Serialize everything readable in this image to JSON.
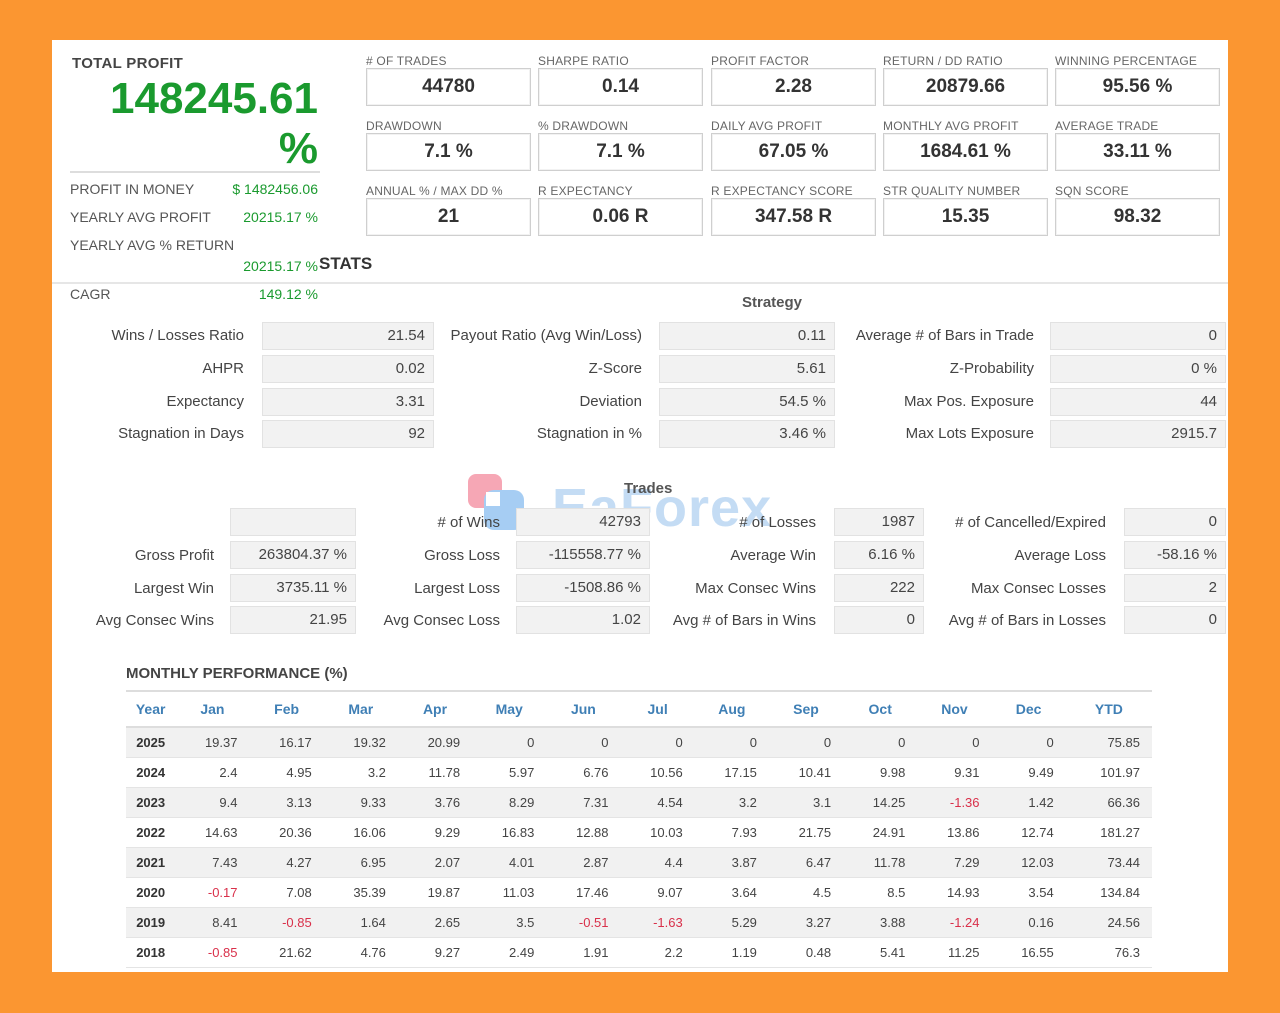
{
  "total_profit": {
    "label": "TOTAL PROFIT",
    "value": "148245.61",
    "pct": "%"
  },
  "side_stats": [
    {
      "label": "PROFIT IN MONEY",
      "value": "$ 1482456.06"
    },
    {
      "label": "YEARLY AVG PROFIT",
      "value": "20215.17 %"
    },
    {
      "label": "YEARLY AVG % RETURN",
      "value": "20215.17 %"
    },
    {
      "label": "CAGR",
      "value": "149.12 %"
    }
  ],
  "stats_title": "STATS",
  "metrics": [
    {
      "label": "# OF TRADES",
      "value": "44780"
    },
    {
      "label": "SHARPE RATIO",
      "value": "0.14"
    },
    {
      "label": "PROFIT FACTOR",
      "value": "2.28"
    },
    {
      "label": "RETURN / DD RATIO",
      "value": "20879.66"
    },
    {
      "label": "WINNING PERCENTAGE",
      "value": "95.56 %"
    },
    {
      "label": "DRAWDOWN",
      "value": "7.1 %"
    },
    {
      "label": "% DRAWDOWN",
      "value": "7.1 %"
    },
    {
      "label": "DAILY AVG PROFIT",
      "value": "67.05 %"
    },
    {
      "label": "MONTHLY AVG PROFIT",
      "value": "1684.61 %"
    },
    {
      "label": "AVERAGE TRADE",
      "value": "33.11 %"
    },
    {
      "label": "ANNUAL % / MAX DD %",
      "value": "21"
    },
    {
      "label": "R EXPECTANCY",
      "value": "0.06 R"
    },
    {
      "label": "R EXPECTANCY SCORE",
      "value": "347.58 R"
    },
    {
      "label": "STR QUALITY NUMBER",
      "value": "15.35"
    },
    {
      "label": "SQN SCORE",
      "value": "98.32"
    }
  ],
  "strategy": {
    "title": "Strategy",
    "rows": [
      {
        "l1": "Wins / Losses Ratio",
        "v1": "21.54",
        "l2": "Payout Ratio (Avg Win/Loss)",
        "v2": "0.11",
        "l3": "Average # of Bars in Trade",
        "v3": "0"
      },
      {
        "l1": "AHPR",
        "v1": "0.02",
        "l2": "Z-Score",
        "v2": "5.61",
        "l3": "Z-Probability",
        "v3": "0 %"
      },
      {
        "l1": "Expectancy",
        "v1": "3.31",
        "l2": "Deviation",
        "v2": "54.5 %",
        "l3": "Max Pos. Exposure",
        "v3": "44"
      },
      {
        "l1": "Stagnation in Days",
        "v1": "92",
        "l2": "Stagnation in %",
        "v2": "3.46 %",
        "l3": "Max Lots Exposure",
        "v3": "2915.7"
      }
    ]
  },
  "trades": {
    "title": "Trades",
    "rows": [
      {
        "l1": "",
        "v1": "",
        "l2": "# of Wins",
        "v2": "42793",
        "l3": "# of Losses",
        "v3": "1987",
        "l4": "# of Cancelled/Expired",
        "v4": "0"
      },
      {
        "l1": "Gross Profit",
        "v1": "263804.37 %",
        "l2": "Gross Loss",
        "v2": "-115558.77 %",
        "l3": "Average Win",
        "v3": "6.16 %",
        "l4": "Average Loss",
        "v4": "-58.16 %"
      },
      {
        "l1": "Largest Win",
        "v1": "3735.11 %",
        "l2": "Largest Loss",
        "v2": "-1508.86 %",
        "l3": "Max Consec Wins",
        "v3": "222",
        "l4": "Max Consec Losses",
        "v4": "2"
      },
      {
        "l1": "Avg Consec Wins",
        "v1": "21.95",
        "l2": "Avg Consec Loss",
        "v2": "1.02",
        "l3": "Avg # of Bars in Wins",
        "v3": "0",
        "l4": "Avg # of Bars in Losses",
        "v4": "0"
      }
    ]
  },
  "watermark": {
    "text": "EaForex"
  },
  "monthly": {
    "title": "MONTHLY PERFORMANCE (%)",
    "headers": [
      "Year",
      "Jan",
      "Feb",
      "Mar",
      "Apr",
      "May",
      "Jun",
      "Jul",
      "Aug",
      "Sep",
      "Oct",
      "Nov",
      "Dec",
      "YTD"
    ],
    "rows": [
      [
        "2025",
        "19.37",
        "16.17",
        "19.32",
        "20.99",
        "0",
        "0",
        "0",
        "0",
        "0",
        "0",
        "0",
        "0",
        "75.85"
      ],
      [
        "2024",
        "2.4",
        "4.95",
        "3.2",
        "11.78",
        "5.97",
        "6.76",
        "10.56",
        "17.15",
        "10.41",
        "9.98",
        "9.31",
        "9.49",
        "101.97"
      ],
      [
        "2023",
        "9.4",
        "3.13",
        "9.33",
        "3.76",
        "8.29",
        "7.31",
        "4.54",
        "3.2",
        "3.1",
        "14.25",
        "-1.36",
        "1.42",
        "66.36"
      ],
      [
        "2022",
        "14.63",
        "20.36",
        "16.06",
        "9.29",
        "16.83",
        "12.88",
        "10.03",
        "7.93",
        "21.75",
        "24.91",
        "13.86",
        "12.74",
        "181.27"
      ],
      [
        "2021",
        "7.43",
        "4.27",
        "6.95",
        "2.07",
        "4.01",
        "2.87",
        "4.4",
        "3.87",
        "6.47",
        "11.78",
        "7.29",
        "12.03",
        "73.44"
      ],
      [
        "2020",
        "-0.17",
        "7.08",
        "35.39",
        "19.87",
        "11.03",
        "17.46",
        "9.07",
        "3.64",
        "4.5",
        "8.5",
        "14.93",
        "3.54",
        "134.84"
      ],
      [
        "2019",
        "8.41",
        "-0.85",
        "1.64",
        "2.65",
        "3.5",
        "-0.51",
        "-1.63",
        "5.29",
        "3.27",
        "3.88",
        "-1.24",
        "0.16",
        "24.56"
      ],
      [
        "2018",
        "-0.85",
        "21.62",
        "4.76",
        "9.27",
        "2.49",
        "1.91",
        "2.2",
        "1.19",
        "0.48",
        "5.41",
        "11.25",
        "16.55",
        "76.3"
      ]
    ]
  },
  "colors": {
    "background": "#fb9631",
    "positive": "#1a9a2e",
    "negative": "#d9304a",
    "header_blue": "#3f7fb5"
  }
}
